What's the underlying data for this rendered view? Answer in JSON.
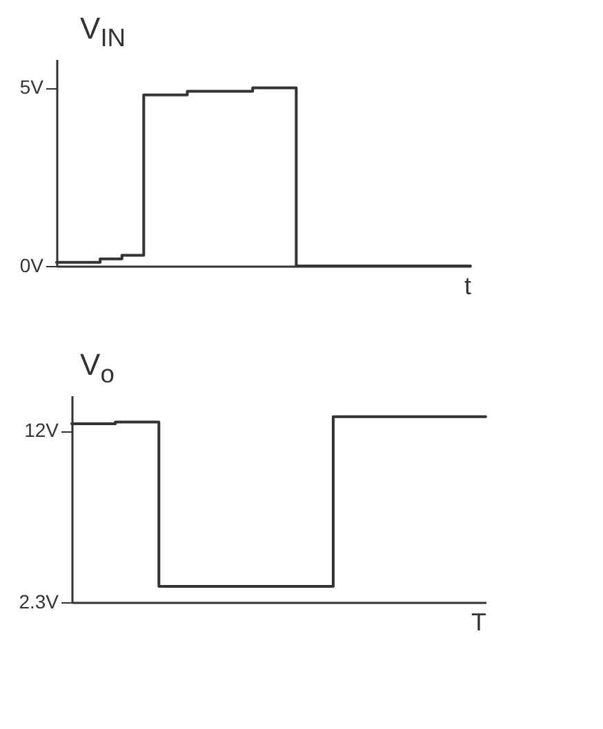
{
  "chart_data": [
    {
      "type": "step",
      "ylabel": "V$_{IN}$",
      "xlabel": "t",
      "color": "#333333",
      "categories": [
        null,
        null,
        null,
        null,
        null,
        null,
        null,
        null,
        null,
        null,
        null,
        null,
        null,
        null,
        null,
        null,
        null,
        null,
        null,
        null
      ],
      "values": [
        0.1,
        0.1,
        0.2,
        0.3,
        4.8,
        4.8,
        4.9,
        4.9,
        4.9,
        5,
        5,
        0,
        0,
        0,
        0,
        0,
        0,
        0,
        0,
        0
      ],
      "ylim": [
        0,
        5.8
      ],
      "yticks": [
        {
          "value": 0,
          "label": "0V"
        },
        {
          "value": 5,
          "label": "5V"
        }
      ]
    },
    {
      "type": "step",
      "ylabel": "V$_{o}$",
      "xlabel": "T",
      "color": "#333333",
      "categories": [
        null,
        null,
        null,
        null,
        null,
        null,
        null,
        null,
        null,
        null,
        null,
        null,
        null,
        null,
        null,
        null,
        null,
        null,
        null,
        null
      ],
      "values": [
        12.4,
        12.4,
        12.5,
        12.5,
        3.2,
        3.2,
        3.2,
        3.2,
        3.2,
        3.2,
        3.2,
        3.2,
        12.8,
        12.8,
        12.8,
        12.8,
        12.8,
        12.8,
        12.8,
        12.8
      ],
      "ylim": [
        2.3,
        14
      ],
      "yticks": [
        {
          "value": 2.3,
          "label": "2.3V"
        },
        {
          "value": 12,
          "label": "12V"
        }
      ]
    }
  ]
}
